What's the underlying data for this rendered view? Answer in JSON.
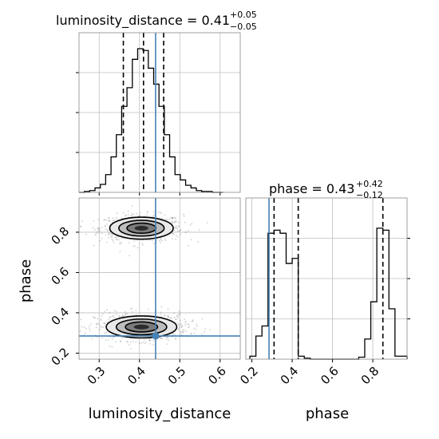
{
  "chart_data": {
    "type": "corner",
    "parameters": [
      "luminosity_distance",
      "phase"
    ],
    "truths": {
      "luminosity_distance": 0.44,
      "phase": 0.285
    },
    "panels": [
      {
        "id": "hist_luminosity_distance",
        "type": "histogram",
        "parameter": "luminosity_distance",
        "title": {
          "main": "luminosity_distance = 0.41",
          "sup": "+0.05",
          "sub": "−0.05"
        },
        "quantiles": [
          0.36,
          0.41,
          0.46
        ],
        "truth": 0.44,
        "xlim": [
          0.25,
          0.65
        ],
        "bin_edges": [
          0.25,
          0.2632,
          0.2765,
          0.2897,
          0.3029,
          0.3161,
          0.3294,
          0.3426,
          0.3558,
          0.369,
          0.3823,
          0.3955,
          0.4087,
          0.4219,
          0.4352,
          0.4484,
          0.4616,
          0.4748,
          0.4881,
          0.5013,
          0.5145,
          0.5277,
          0.541,
          0.5542,
          0.5674,
          0.5806,
          0.5939,
          0.6071
        ],
        "counts": [
          0,
          1,
          2,
          5,
          9,
          20,
          40,
          65,
          97,
          118,
          150,
          162,
          160,
          140,
          122,
          97,
          65,
          40,
          20,
          14,
          8,
          5,
          2,
          1,
          1,
          0,
          0
        ],
        "ylim": [
          0,
          180
        ]
      },
      {
        "id": "hist_phase",
        "type": "histogram",
        "parameter": "phase",
        "title": {
          "main": "phase = 0.43",
          "sup": "+0.42",
          "sub": "−0.12"
        },
        "quantiles": [
          0.31,
          0.43,
          0.85
        ],
        "truth": 0.285,
        "xlim": [
          0.17,
          0.97
        ],
        "bin_edges": [
          0.19,
          0.22,
          0.25,
          0.28,
          0.31,
          0.34,
          0.37,
          0.4,
          0.43,
          0.46,
          0.49,
          0.52,
          0.55,
          0.58,
          0.61,
          0.64,
          0.67,
          0.7,
          0.73,
          0.76,
          0.79,
          0.82,
          0.85,
          0.88,
          0.91,
          0.94,
          0.97
        ],
        "counts": [
          3,
          23,
          33,
          125,
          128,
          125,
          95,
          100,
          3,
          1,
          0,
          0,
          0,
          0,
          0,
          0,
          0,
          0,
          2,
          20,
          57,
          130,
          128,
          50,
          3,
          3
        ],
        "ylim": [
          0,
          160
        ]
      },
      {
        "id": "scatter_ld_phase",
        "type": "2d-contour",
        "x": "luminosity_distance",
        "y": "phase",
        "xlim": [
          0.25,
          0.65
        ],
        "ylim": [
          0.17,
          0.97
        ],
        "modes": [
          {
            "center": [
              0.405,
              0.82
            ],
            "sd": [
              0.045,
              0.04
            ],
            "weight": 0.5
          },
          {
            "center": [
              0.405,
              0.33
            ],
            "sd": [
              0.05,
              0.04
            ],
            "weight": 0.5
          }
        ],
        "truth": [
          0.44,
          0.285
        ]
      }
    ],
    "axes": {
      "luminosity_distance": {
        "label": "luminosity_distance",
        "ticks": [
          "0.3",
          "0.4",
          "0.5",
          "0.6"
        ],
        "tick_values": [
          0.3,
          0.4,
          0.5,
          0.6
        ]
      },
      "phase": {
        "label": "phase",
        "ticks": [
          "0.2",
          "0.4",
          "0.6",
          "0.8"
        ],
        "tick_values": [
          0.2,
          0.4,
          0.6,
          0.8
        ]
      }
    },
    "grid": true,
    "colors": {
      "truth": "#4682b4",
      "hist": "#000000",
      "quantile": "#000000",
      "grid": "#bfbfbf",
      "points": "#555555"
    }
  }
}
